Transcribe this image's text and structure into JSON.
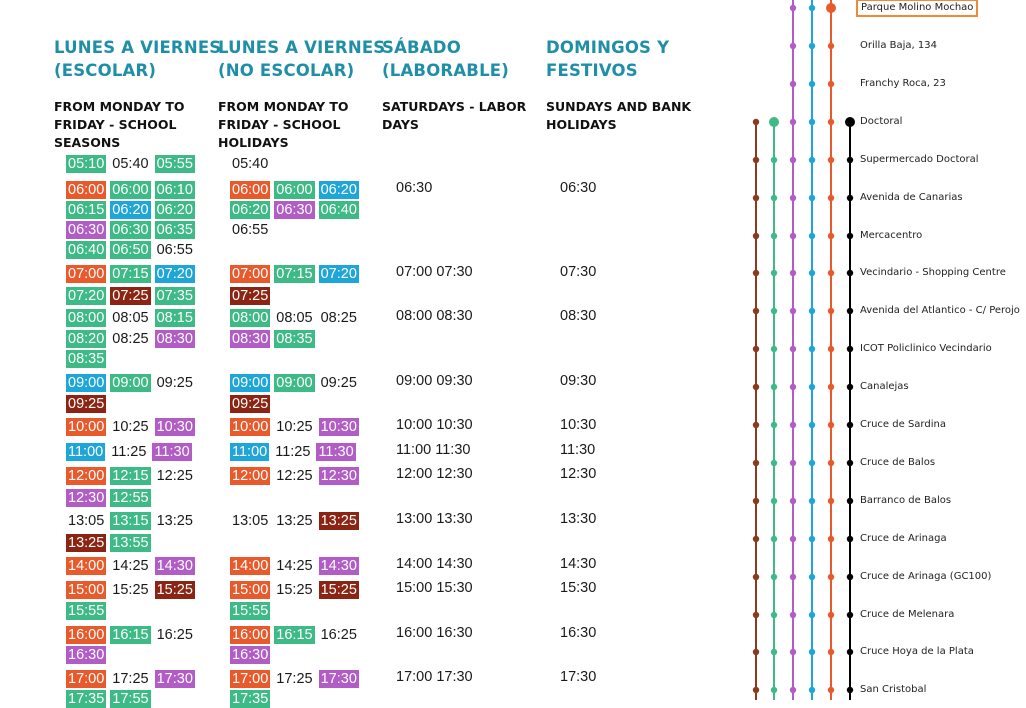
{
  "columns": [
    {
      "title": [
        "LUNES A VIERNES",
        "(ESCOLAR)"
      ],
      "subtitle": [
        "FROM MONDAY TO",
        "FRIDAY - SCHOOL",
        "SEASONS"
      ]
    },
    {
      "title": [
        "LUNES A VIERNES",
        "(NO ESCOLAR)"
      ],
      "subtitle": [
        "FROM MONDAY TO",
        "FRIDAY - SCHOOL",
        "HOLIDAYS"
      ]
    },
    {
      "title": [
        "SÁBADO",
        "(LABORABLE)"
      ],
      "subtitle": [
        "SATURDAYS - LABOR",
        "DAYS"
      ]
    },
    {
      "title": [
        "DOMINGOS Y",
        "FESTIVOS"
      ],
      "subtitle": [
        "SUNDAYS AND BANK",
        "HOLIDAYS"
      ]
    }
  ],
  "timetable": {
    "school": [
      [
        [
          "05:10",
          "gr"
        ],
        [
          "05:40",
          ""
        ],
        [
          "05:55",
          "gr"
        ]
      ],
      [
        [
          "06:00",
          "or"
        ],
        [
          "06:00",
          "gr"
        ],
        [
          "06:10",
          "gr"
        ]
      ],
      [
        [
          "06:15",
          "gr"
        ],
        [
          "06:20",
          "bl"
        ],
        [
          "06:20",
          "gr"
        ]
      ],
      [
        [
          "06:30",
          "pu"
        ],
        [
          "06:30",
          "gr"
        ],
        [
          "06:35",
          "gr"
        ]
      ],
      [
        [
          "06:40",
          "gr"
        ],
        [
          "06:50",
          "gr"
        ],
        [
          "06:55",
          ""
        ]
      ],
      [
        [
          "07:00",
          "or"
        ],
        [
          "07:15",
          "gr"
        ],
        [
          "07:20",
          "bl"
        ]
      ],
      [
        [
          "07:20",
          "gr"
        ],
        [
          "07:25",
          "br"
        ],
        [
          "07:35",
          "gr"
        ]
      ],
      [
        [
          "08:00",
          "gr"
        ],
        [
          "08:05",
          ""
        ],
        [
          "08:15",
          "gr"
        ]
      ],
      [
        [
          "08:20",
          "gr"
        ],
        [
          "08:25",
          ""
        ],
        [
          "08:30",
          "pu"
        ]
      ],
      [
        [
          "08:35",
          "gr"
        ]
      ],
      [
        [
          "09:00",
          "bl"
        ],
        [
          "09:00",
          "gr"
        ],
        [
          "09:25",
          ""
        ]
      ],
      [
        [
          "09:25",
          "br"
        ]
      ],
      [
        [
          "10:00",
          "or"
        ],
        [
          "10:25",
          ""
        ],
        [
          "10:30",
          "pu"
        ]
      ],
      [
        [
          "11:00",
          "bl"
        ],
        [
          "11:25",
          ""
        ],
        [
          "11:30",
          "pu"
        ]
      ],
      [
        [
          "12:00",
          "or"
        ],
        [
          "12:15",
          "gr"
        ],
        [
          "12:25",
          ""
        ]
      ],
      [
        [
          "12:30",
          "pu"
        ],
        [
          "12:55",
          "gr"
        ]
      ],
      [
        [
          "13:05",
          ""
        ],
        [
          "13:15",
          "gr"
        ],
        [
          "13:25",
          ""
        ]
      ],
      [
        [
          "13:25",
          "br"
        ],
        [
          "13:55",
          "gr"
        ]
      ],
      [
        [
          "14:00",
          "or"
        ],
        [
          "14:25",
          ""
        ],
        [
          "14:30",
          "pu"
        ]
      ],
      [
        [
          "15:00",
          "or"
        ],
        [
          "15:25",
          ""
        ],
        [
          "15:25",
          "br"
        ]
      ],
      [
        [
          "15:55",
          "gr"
        ]
      ],
      [
        [
          "16:00",
          "or"
        ],
        [
          "16:15",
          "gr"
        ],
        [
          "16:25",
          ""
        ]
      ],
      [
        [
          "16:30",
          "pu"
        ]
      ],
      [
        [
          "17:00",
          "or"
        ],
        [
          "17:25",
          ""
        ],
        [
          "17:30",
          "pu"
        ]
      ],
      [
        [
          "17:35",
          "gr"
        ],
        [
          "17:55",
          "gr"
        ]
      ]
    ],
    "holiday": [
      [
        [
          "05:40",
          ""
        ]
      ],
      [
        [
          "06:00",
          "or"
        ],
        [
          "06:00",
          "gr"
        ],
        [
          "06:20",
          "bl"
        ]
      ],
      [
        [
          "06:20",
          "gr"
        ],
        [
          "06:30",
          "pu"
        ],
        [
          "06:40",
          "gr"
        ]
      ],
      [
        [
          "06:55",
          ""
        ]
      ],
      [],
      [
        [
          "07:00",
          "or"
        ],
        [
          "07:15",
          "gr"
        ],
        [
          "07:20",
          "bl"
        ]
      ],
      [
        [
          "07:25",
          "br"
        ]
      ],
      [
        [
          "08:00",
          "gr"
        ],
        [
          "08:05",
          ""
        ],
        [
          "08:25",
          ""
        ]
      ],
      [
        [
          "08:30",
          "pu"
        ],
        [
          "08:35",
          "gr"
        ]
      ],
      [],
      [
        [
          "09:00",
          "bl"
        ],
        [
          "09:00",
          "gr"
        ],
        [
          "09:25",
          ""
        ]
      ],
      [
        [
          "09:25",
          "br"
        ]
      ],
      [
        [
          "10:00",
          "or"
        ],
        [
          "10:25",
          ""
        ],
        [
          "10:30",
          "pu"
        ]
      ],
      [
        [
          "11:00",
          "bl"
        ],
        [
          "11:25",
          ""
        ],
        [
          "11:30",
          "pu"
        ]
      ],
      [
        [
          "12:00",
          "or"
        ],
        [
          "12:25",
          ""
        ],
        [
          "12:30",
          "pu"
        ]
      ],
      [],
      [
        [
          "13:05",
          ""
        ],
        [
          "13:25",
          ""
        ],
        [
          "13:25",
          "br"
        ]
      ],
      [],
      [
        [
          "14:00",
          "or"
        ],
        [
          "14:25",
          ""
        ],
        [
          "14:30",
          "pu"
        ]
      ],
      [
        [
          "15:00",
          "or"
        ],
        [
          "15:25",
          ""
        ],
        [
          "15:25",
          "br"
        ]
      ],
      [
        [
          "15:55",
          "gr"
        ]
      ],
      [
        [
          "16:00",
          "or"
        ],
        [
          "16:15",
          "gr"
        ],
        [
          "16:25",
          ""
        ]
      ],
      [
        [
          "16:30",
          "pu"
        ]
      ],
      [
        [
          "17:00",
          "or"
        ],
        [
          "17:25",
          ""
        ],
        [
          "17:30",
          "pu"
        ]
      ],
      [
        [
          "17:35",
          "gr"
        ]
      ]
    ],
    "saturday": {
      "1": "06:30",
      "5": "07:00 07:30",
      "7": "08:00 08:30",
      "10": "09:00 09:30",
      "12": "10:00 10:30",
      "13": "11:00 11:30",
      "14": "12:00 12:30",
      "16": "13:00 13:30",
      "18": "14:00 14:30",
      "19": "15:00 15:30",
      "21": "16:00 16:30",
      "23": "17:00 17:30"
    },
    "sunday": {
      "1": "06:30",
      "5": "07:30",
      "7": "08:30",
      "10": "09:30",
      "12": "10:30",
      "13": "11:30",
      "14": "12:30",
      "16": "13:30",
      "18": "14:30",
      "19": "15:30",
      "21": "16:30",
      "23": "17:30"
    }
  },
  "stops": [
    "Parque Molino Mochao",
    "Orilla Baja, 134",
    "Franchy Roca, 23",
    "Doctoral",
    "Supermercado Doctoral",
    "Avenida de Canarias",
    "Mercacentro",
    "Vecindario - Shopping Centre",
    "Avenida del Atlantico - C/ Perojo",
    "ICOT  Policlinico Vecindario",
    "Canalejas",
    "Cruce de Sardina",
    "Cruce de Balos",
    "Barranco de Balos",
    "Cruce de Arinaga",
    "Cruce de Arinaga (GC100)",
    "Cruce de Melenara",
    "Cruce Hoya de la Plata",
    "San Cristobal"
  ],
  "route_colors": {
    "brown": "#8b3a1e",
    "green": "#3dba86",
    "purple": "#b25dc6",
    "blue": "#1fa6d8",
    "orange": "#e85a2c",
    "black": "#000000"
  }
}
